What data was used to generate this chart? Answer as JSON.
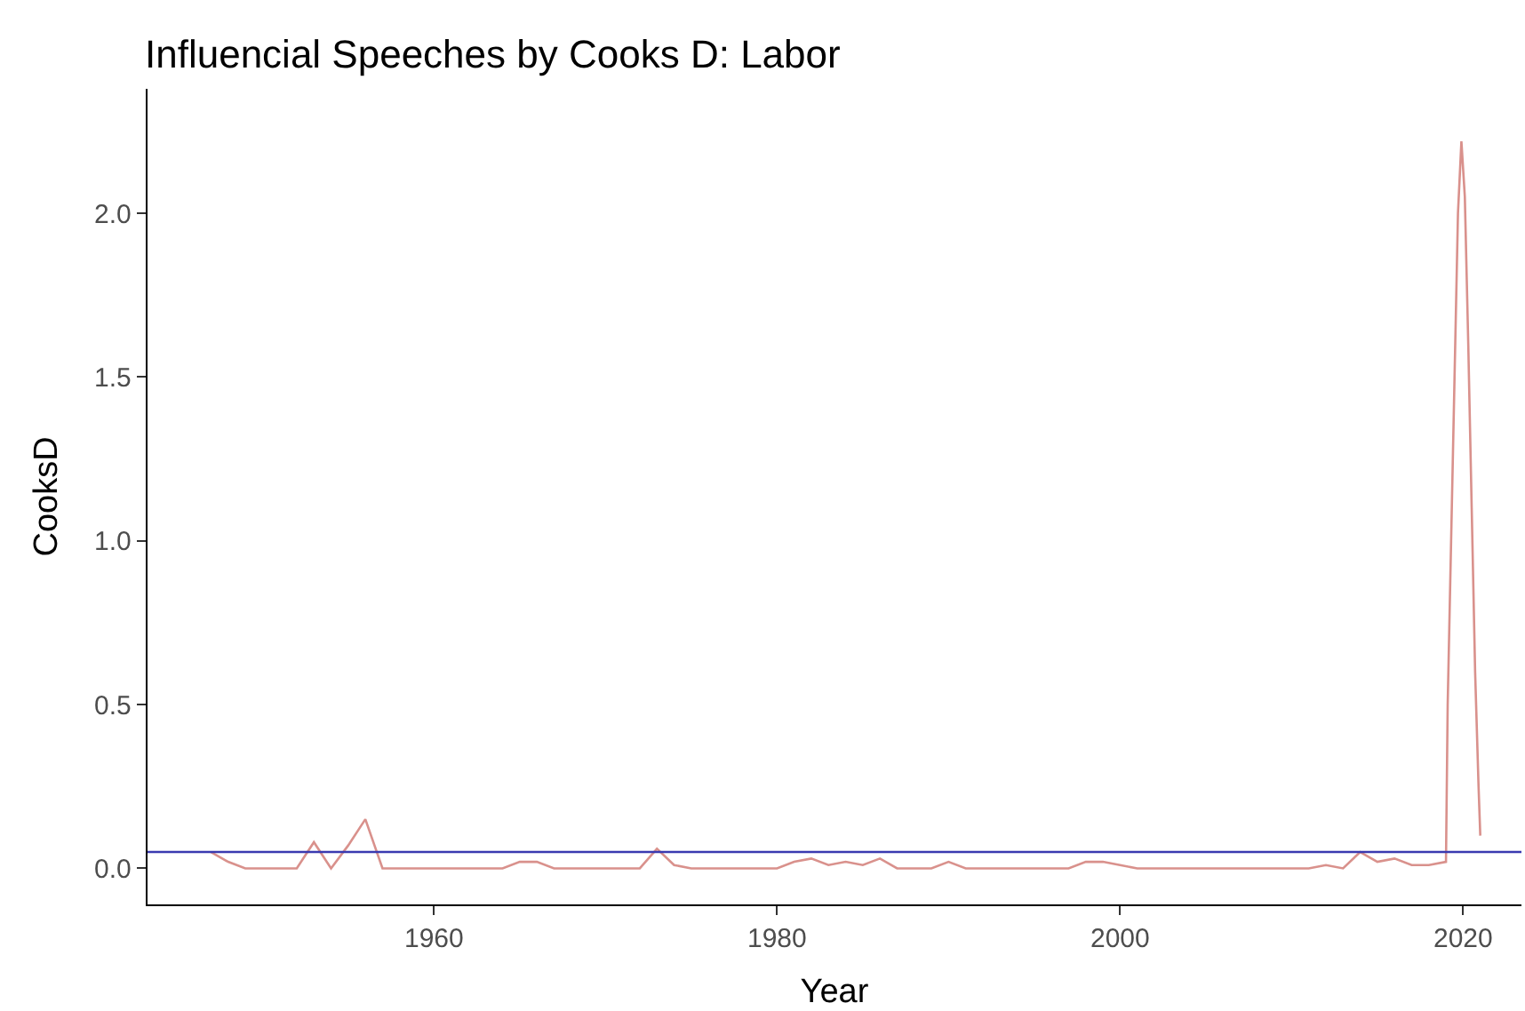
{
  "chart_data": {
    "type": "line",
    "title": "Influencial Speeches by Cooks D: Labor",
    "xlabel": "Year",
    "ylabel": "CooksD",
    "xlim": [
      1943.3,
      2023.4
    ],
    "xticks": [
      1960,
      1980,
      2000,
      2020
    ],
    "ylim": [
      -0.11,
      2.38
    ],
    "yticks": [
      {
        "value": 0,
        "label": "0.0"
      },
      {
        "value": 0.5,
        "label": "0.5"
      },
      {
        "value": 1,
        "label": "1.0"
      },
      {
        "value": 1.5,
        "label": "1.5"
      },
      {
        "value": 2,
        "label": "2.0"
      }
    ],
    "line_style": "solid",
    "marker": "none",
    "ref_lines": [
      {
        "axis": "y",
        "value": 0.05,
        "color": "#3a3ab0",
        "line_style": "solid"
      }
    ],
    "series": [
      {
        "color": "#d9918c",
        "x": [
          1947,
          1948,
          1949,
          1952,
          1953,
          1954,
          1955,
          1956,
          1957,
          1964,
          1965,
          1966,
          1967,
          1972,
          1973,
          1974,
          1975,
          1980,
          1981,
          1982,
          1983,
          1984,
          1985,
          1986,
          1987,
          1989,
          1990,
          1991,
          1997,
          1998,
          1999,
          2000,
          2001,
          2011,
          2012,
          2013,
          2014,
          2015,
          2016,
          2017,
          2018,
          2019,
          2019.1,
          2019.3,
          2019.5,
          2019.7,
          2019.9,
          2020.1,
          2020.3,
          2020.5,
          2020.7,
          2020.9,
          2021
        ],
        "values": [
          0.05,
          0.02,
          0.0,
          0.0,
          0.08,
          0.0,
          0.07,
          0.15,
          0.0,
          0.0,
          0.02,
          0.02,
          0.0,
          0.0,
          0.06,
          0.01,
          0.0,
          0.0,
          0.02,
          0.03,
          0.01,
          0.02,
          0.01,
          0.03,
          0.0,
          0.0,
          0.02,
          0.0,
          0.0,
          0.02,
          0.02,
          0.01,
          0.0,
          0.0,
          0.01,
          0.0,
          0.05,
          0.02,
          0.03,
          0.01,
          0.01,
          0.02,
          0.5,
          1.0,
          1.5,
          2.0,
          2.22,
          2.05,
          1.6,
          1.1,
          0.6,
          0.25,
          0.1
        ]
      }
    ]
  }
}
